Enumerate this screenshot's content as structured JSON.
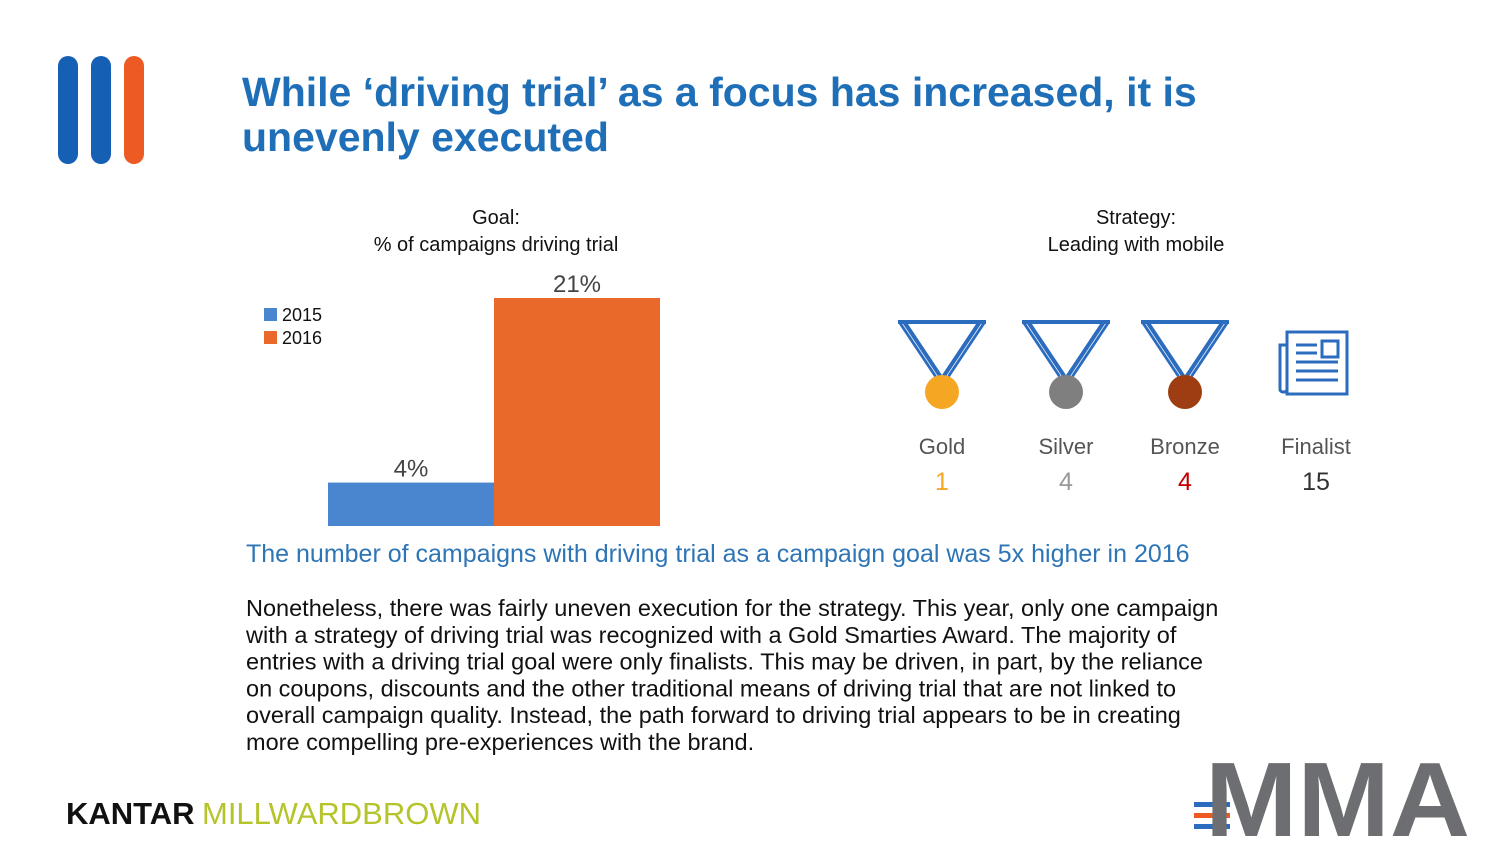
{
  "header": {
    "title_lines": [
      "While ‘driving trial’ as a focus has increased, it is",
      "unevenly executed"
    ]
  },
  "chart_data": {
    "type": "bar",
    "title": "Goal:",
    "subtitle": "% of campaigns driving trial",
    "categories": [
      null
    ],
    "series": [
      {
        "name": "2015",
        "color": "#4a86cf",
        "values": [
          4
        ],
        "value_labels": [
          "4%"
        ]
      },
      {
        "name": "2016",
        "color": "#e8692a",
        "values": [
          21
        ],
        "value_labels": [
          "21%"
        ]
      }
    ],
    "ylim": [
      0,
      21
    ],
    "legend": "upper left"
  },
  "strategy": {
    "title": "Strategy:",
    "subtitle": "Leading with mobile",
    "awards": [
      {
        "label": "Gold",
        "count": 1,
        "color": "#f5a623"
      },
      {
        "label": "Silver",
        "count": 4,
        "color": "#7f7f7f"
      },
      {
        "label": "Bronze",
        "count": 4,
        "color": "#9e3d12"
      },
      {
        "label": "Finalist",
        "count": 15,
        "color": "#2b6cbf"
      }
    ]
  },
  "caption": "The number of campaigns with driving trial as a campaign goal was 5x higher in 2016",
  "body": {
    "lines": [
      "Nonetheless, there was fairly uneven execution for the strategy. This year, only one campaign",
      "with a strategy of driving trial was recognized with a Gold Smarties Award. The majority of",
      "entries with a driving trial goal were only finalists. This may be driven, in part, by the reliance",
      "on coupons, discounts and the other traditional means of driving trial that are not linked to",
      "overall campaign quality. Instead, the path forward to driving trial appears to be in creating",
      "more compelling pre-experiences with the brand."
    ]
  },
  "footer": {
    "kantar": "KANTAR",
    "millward": "MILLWARDBROWN",
    "mma": "MMA"
  }
}
